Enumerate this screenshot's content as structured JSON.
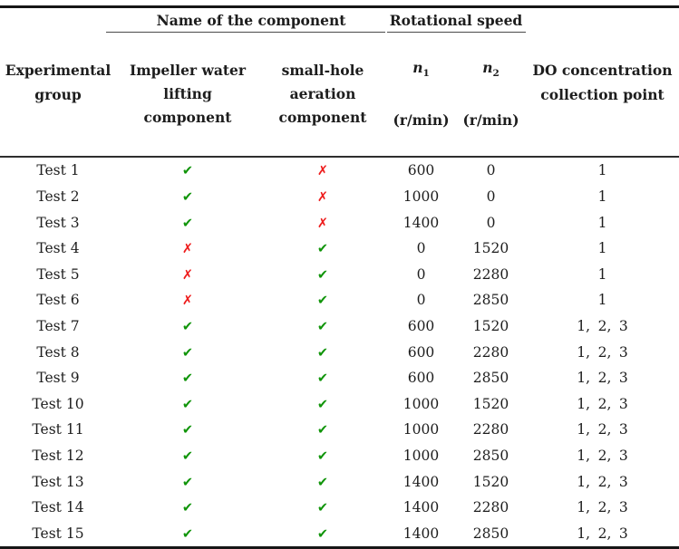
{
  "table": {
    "header": {
      "experimental_group": "Experimental\ngroup",
      "name_of_component_group": "Name of the component",
      "rotational_speed_group": "Rotational speed",
      "impeller_component": "Impeller water\nlifting\ncomponent",
      "aeration_component": "small-hole\naeration\ncomponent",
      "n1": {
        "symbol": "n",
        "sub": "1",
        "unit": "(r/min)"
      },
      "n2": {
        "symbol": "n",
        "sub": "2",
        "unit": "(r/min)"
      },
      "do_point": "DO concentration\ncollection point"
    },
    "marks": {
      "check": "✔",
      "cross": "✗"
    },
    "point_separator": "、",
    "colors": {
      "check": "#0f9408",
      "cross": "#ee1c1c",
      "text": "#1d1d1d",
      "rule_dark": "#161616",
      "rule_mid": "#2e2e2e",
      "rule_thin": "#4a4a4a"
    },
    "rows": [
      {
        "group": "Test 1",
        "impeller": true,
        "aeration": false,
        "n1": "600",
        "n2": "0",
        "points": [
          "1"
        ]
      },
      {
        "group": "Test 2",
        "impeller": true,
        "aeration": false,
        "n1": "1000",
        "n2": "0",
        "points": [
          "1"
        ]
      },
      {
        "group": "Test 3",
        "impeller": true,
        "aeration": false,
        "n1": "1400",
        "n2": "0",
        "points": [
          "1"
        ]
      },
      {
        "group": "Test 4",
        "impeller": false,
        "aeration": true,
        "n1": "0",
        "n2": "1520",
        "points": [
          "1"
        ]
      },
      {
        "group": "Test 5",
        "impeller": false,
        "aeration": true,
        "n1": "0",
        "n2": "2280",
        "points": [
          "1"
        ]
      },
      {
        "group": "Test 6",
        "impeller": false,
        "aeration": true,
        "n1": "0",
        "n2": "2850",
        "points": [
          "1"
        ]
      },
      {
        "group": "Test 7",
        "impeller": true,
        "aeration": true,
        "n1": "600",
        "n2": "1520",
        "points": [
          "1",
          "2",
          "3"
        ]
      },
      {
        "group": "Test 8",
        "impeller": true,
        "aeration": true,
        "n1": "600",
        "n2": "2280",
        "points": [
          "1",
          "2",
          "3"
        ]
      },
      {
        "group": "Test 9",
        "impeller": true,
        "aeration": true,
        "n1": "600",
        "n2": "2850",
        "points": [
          "1",
          "2",
          "3"
        ]
      },
      {
        "group": "Test 10",
        "impeller": true,
        "aeration": true,
        "n1": "1000",
        "n2": "1520",
        "points": [
          "1",
          "2",
          "3"
        ]
      },
      {
        "group": "Test 11",
        "impeller": true,
        "aeration": true,
        "n1": "1000",
        "n2": "2280",
        "points": [
          "1",
          "2",
          "3"
        ]
      },
      {
        "group": "Test 12",
        "impeller": true,
        "aeration": true,
        "n1": "1000",
        "n2": "2850",
        "points": [
          "1",
          "2",
          "3"
        ]
      },
      {
        "group": "Test 13",
        "impeller": true,
        "aeration": true,
        "n1": "1400",
        "n2": "1520",
        "points": [
          "1",
          "2",
          "3"
        ]
      },
      {
        "group": "Test 14",
        "impeller": true,
        "aeration": true,
        "n1": "1400",
        "n2": "2280",
        "points": [
          "1",
          "2",
          "3"
        ]
      },
      {
        "group": "Test 15",
        "impeller": true,
        "aeration": true,
        "n1": "1400",
        "n2": "2850",
        "points": [
          "1",
          "2",
          "3"
        ]
      }
    ]
  }
}
